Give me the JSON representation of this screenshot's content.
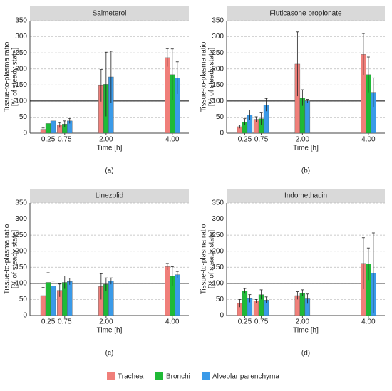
{
  "chart_data": [
    {
      "type": "bar",
      "title": "Salmeterol",
      "panel": "(a)",
      "xlabel": "Time [h]",
      "ylabel": [
        "Tissue-to-plasma ratio",
        "[% of steady state]"
      ],
      "x": [
        0.25,
        0.75,
        2,
        4
      ],
      "xlim": [
        -0.3,
        4.5
      ],
      "xticks": [
        0.25,
        0.75,
        {
          "value": 2,
          "label": "2.00"
        },
        {
          "value": 4,
          "label": "4.00"
        }
      ],
      "ylim": [
        0,
        350
      ],
      "yticks": [
        0,
        50,
        100,
        150,
        200,
        250,
        300,
        350
      ],
      "grid": true,
      "hline": 100,
      "series": [
        {
          "name": "Trachea",
          "color": "#f07f7a",
          "values": [
            12,
            25,
            148,
            235
          ],
          "errors": [
            4,
            8,
            50,
            28
          ]
        },
        {
          "name": "Bronchi",
          "color": "#1fba36",
          "values": [
            30,
            28,
            152,
            182
          ],
          "errors": [
            18,
            10,
            100,
            80
          ]
        },
        {
          "name": "Alveolar parenchyma",
          "color": "#3a9ae8",
          "values": [
            38,
            38,
            175,
            172
          ],
          "errors": [
            10,
            8,
            80,
            50
          ]
        }
      ]
    },
    {
      "type": "bar",
      "title": "Fluticasone propionate",
      "panel": "(b)",
      "xlabel": "Time [h]",
      "ylabel": [
        "Tissue-to-plasma ratio",
        "[% of steady state]"
      ],
      "x": [
        0.25,
        0.75,
        2,
        4
      ],
      "xlim": [
        -0.3,
        4.5
      ],
      "xticks": [
        0.25,
        0.75,
        {
          "value": 2,
          "label": "2.00"
        },
        {
          "value": 4,
          "label": "4.00"
        }
      ],
      "ylim": [
        0,
        350
      ],
      "yticks": [
        0,
        50,
        100,
        150,
        200,
        250,
        300,
        350
      ],
      "grid": true,
      "hline": 100,
      "series": [
        {
          "name": "Trachea",
          "color": "#f07f7a",
          "values": [
            20,
            43,
            215,
            245
          ],
          "errors": [
            5,
            8,
            100,
            65
          ]
        },
        {
          "name": "Bronchi",
          "color": "#1fba36",
          "values": [
            35,
            45,
            110,
            182
          ],
          "errors": [
            10,
            20,
            25,
            55
          ]
        },
        {
          "name": "Alveolar parenchyma",
          "color": "#3a9ae8",
          "values": [
            57,
            88,
            100,
            127
          ],
          "errors": [
            15,
            20,
            5,
            45
          ]
        }
      ]
    },
    {
      "type": "bar",
      "title": "Linezolid",
      "panel": "(c)",
      "xlabel": "Time [h]",
      "ylabel": [
        "Tissue-to-plasma ratio",
        "[% of steady state]"
      ],
      "x": [
        0.25,
        0.75,
        2,
        4
      ],
      "xlim": [
        -0.3,
        4.5
      ],
      "xticks": [
        0.25,
        0.75,
        {
          "value": 2,
          "label": "2.00"
        },
        {
          "value": 4,
          "label": "4.00"
        }
      ],
      "ylim": [
        0,
        350
      ],
      "yticks": [
        0,
        50,
        100,
        150,
        200,
        250,
        300,
        350
      ],
      "grid": true,
      "hline": 100,
      "series": [
        {
          "name": "Trachea",
          "color": "#f07f7a",
          "values": [
            62,
            78,
            90,
            152
          ],
          "errors": [
            25,
            20,
            40,
            10
          ]
        },
        {
          "name": "Bronchi",
          "color": "#1fba36",
          "values": [
            103,
            103,
            97,
            122
          ],
          "errors": [
            30,
            20,
            20,
            30
          ]
        },
        {
          "name": "Alveolar parenchyma",
          "color": "#3a9ae8",
          "values": [
            92,
            106,
            107,
            127
          ],
          "errors": [
            15,
            10,
            10,
            10
          ]
        }
      ]
    },
    {
      "type": "bar",
      "title": "Indomethacin",
      "panel": "(d)",
      "xlabel": "Time [h]",
      "ylabel": [
        "Tissue-to-plasma ratio",
        "[% of steady state]"
      ],
      "x": [
        0.25,
        0.75,
        2,
        4
      ],
      "xlim": [
        -0.3,
        4.5
      ],
      "xticks": [
        0.25,
        0.75,
        {
          "value": 2,
          "label": "2.00"
        },
        {
          "value": 4,
          "label": "4.00"
        }
      ],
      "ylim": [
        0,
        350
      ],
      "yticks": [
        0,
        50,
        100,
        150,
        200,
        250,
        300,
        350
      ],
      "grid": true,
      "hline": 100,
      "series": [
        {
          "name": "Trachea",
          "color": "#f07f7a",
          "values": [
            38,
            45,
            62,
            162
          ],
          "errors": [
            12,
            5,
            12,
            80
          ]
        },
        {
          "name": "Bronchi",
          "color": "#1fba36",
          "values": [
            76,
            65,
            70,
            160
          ],
          "errors": [
            8,
            15,
            10,
            50
          ]
        },
        {
          "name": "Alveolar parenchyma",
          "color": "#3a9ae8",
          "values": [
            53,
            48,
            52,
            132
          ],
          "errors": [
            12,
            10,
            15,
            125
          ]
        }
      ]
    }
  ]
}
